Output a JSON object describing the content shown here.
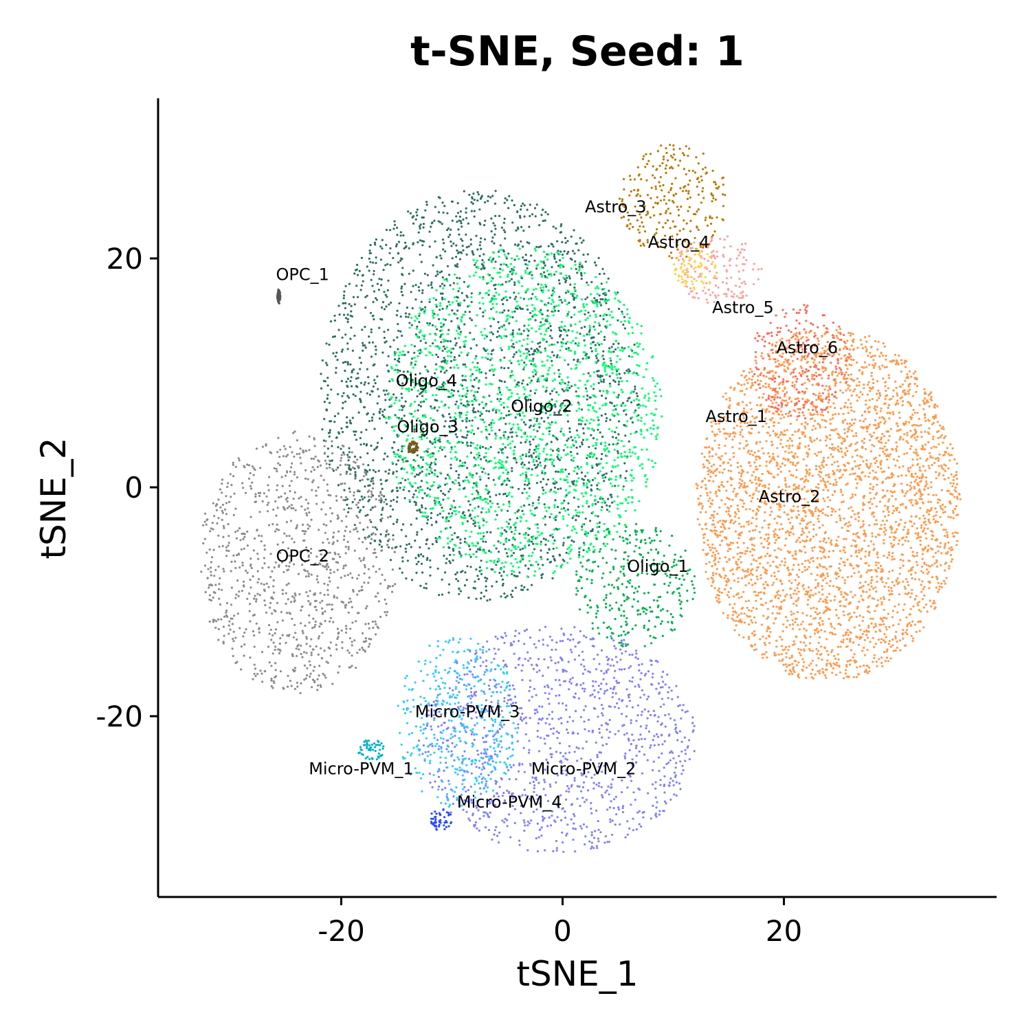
{
  "chart_data": {
    "type": "scatter",
    "title": "t-SNE, Seed: 1",
    "xlabel": "tSNE_1",
    "ylabel": "tSNE_2",
    "xlim": [
      -36,
      39
    ],
    "ylim": [
      -36,
      34
    ],
    "xticks": [
      -20,
      0,
      20
    ],
    "yticks": [
      -20,
      0,
      20
    ],
    "xtick_labels": [
      "-20",
      "0",
      "20"
    ],
    "ytick_labels": [
      "-20",
      "0",
      "20"
    ],
    "grid": false,
    "legend": "none",
    "clusters": [
      {
        "label": "Oligo_1",
        "color": "#00b050",
        "label_at": [
          8.6,
          -6.9
        ],
        "x": [
          1,
          12
        ],
        "y": [
          -14,
          -3
        ]
      },
      {
        "label": "Oligo_2",
        "color": "#00ff6e",
        "label_at": [
          -1.9,
          7.1
        ],
        "x": [
          -16,
          9
        ],
        "y": [
          -8,
          21
        ]
      },
      {
        "label": "Oligo_3",
        "color": "#7a5a16",
        "label_at": [
          -12.2,
          5.3
        ],
        "x": [
          -14,
          -13
        ],
        "y": [
          3,
          4
        ]
      },
      {
        "label": "Oligo_4",
        "color": "#2d6e61",
        "label_at": [
          -12.3,
          9.3
        ],
        "x": [
          -22,
          7
        ],
        "y": [
          -10,
          26
        ]
      },
      {
        "label": "OPC_1",
        "color": "#555555",
        "label_at": [
          -23.5,
          18.6
        ],
        "x": [
          -25.8,
          -25.5
        ],
        "y": [
          16,
          17.3
        ]
      },
      {
        "label": "OPC_2",
        "color": "#8c8c8c",
        "label_at": [
          -23.5,
          -6.0
        ],
        "x": [
          -33,
          -15
        ],
        "y": [
          -18,
          5
        ]
      },
      {
        "label": "Astro_1",
        "color": "#ff9a4d",
        "label_at": [
          15.7,
          6.2
        ],
        "x": [
          12,
          36
        ],
        "y": [
          -17,
          14
        ]
      },
      {
        "label": "Astro_2",
        "color": "#ff9a4d",
        "label_at": [
          20.5,
          -0.8
        ],
        "x": [
          12,
          36
        ],
        "y": [
          -17,
          14
        ]
      },
      {
        "label": "Astro_3",
        "color": "#b87a00",
        "label_at": [
          4.8,
          24.5
        ],
        "x": [
          5,
          15
        ],
        "y": [
          20,
          30
        ]
      },
      {
        "label": "Astro_4",
        "color": "#ffd24d",
        "label_at": [
          10.5,
          21.4
        ],
        "x": [
          10,
          14
        ],
        "y": [
          17,
          21
        ]
      },
      {
        "label": "Astro_5",
        "color": "#ffa0a0",
        "label_at": [
          16.3,
          15.7
        ],
        "x": [
          10,
          18
        ],
        "y": [
          16,
          22
        ]
      },
      {
        "label": "Astro_6",
        "color": "#ff6a5a",
        "label_at": [
          22.1,
          12.2
        ],
        "x": [
          17,
          26
        ],
        "y": [
          6,
          16
        ]
      },
      {
        "label": "Micro-PVM_1",
        "color": "#00b0c8",
        "label_at": [
          -18.2,
          -24.6
        ],
        "x": [
          -18.5,
          -16
        ],
        "y": [
          -24,
          -22
        ]
      },
      {
        "label": "Micro-PVM_2",
        "color": "#8080ff",
        "label_at": [
          1.9,
          -24.6
        ],
        "x": [
          -13,
          12
        ],
        "y": [
          -32,
          -12
        ]
      },
      {
        "label": "Micro-PVM_3",
        "color": "#33ccff",
        "label_at": [
          -8.6,
          -19.6
        ],
        "x": [
          -15,
          -4
        ],
        "y": [
          -28,
          -13
        ]
      },
      {
        "label": "Micro-PVM_4",
        "color": "#2a4cff",
        "label_at": [
          -4.8,
          -27.5
        ],
        "x": [
          -12,
          -10
        ],
        "y": [
          -30,
          -28
        ]
      }
    ]
  }
}
